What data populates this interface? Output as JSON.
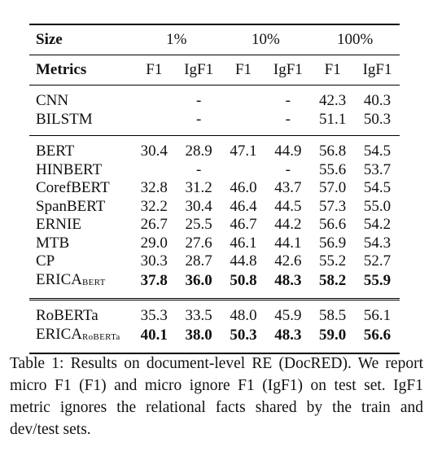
{
  "header": {
    "size_label": "Size",
    "groups": [
      "1%",
      "10%",
      "100%"
    ],
    "metrics_label": "Metrics",
    "metrics": [
      "F1",
      "IgF1",
      "F1",
      "IgF1",
      "F1",
      "IgF1"
    ]
  },
  "section1": [
    {
      "name": "CNN",
      "values": [
        "",
        "-",
        "",
        "-",
        "42.3",
        "40.3"
      ]
    },
    {
      "name": "BILSTM",
      "values": [
        "",
        "-",
        "",
        "-",
        "51.1",
        "50.3"
      ]
    }
  ],
  "section2": [
    {
      "name": "BERT",
      "values": [
        "30.4",
        "28.9",
        "47.1",
        "44.9",
        "56.8",
        "54.5"
      ]
    },
    {
      "name": "HINBERT",
      "values": [
        "",
        "-",
        "",
        "-",
        "55.6",
        "53.7"
      ]
    },
    {
      "name": "CorefBERT",
      "values": [
        "32.8",
        "31.2",
        "46.0",
        "43.7",
        "57.0",
        "54.5"
      ]
    },
    {
      "name": "SpanBERT",
      "values": [
        "32.2",
        "30.4",
        "46.4",
        "44.5",
        "57.3",
        "55.0"
      ]
    },
    {
      "name": "ERNIE",
      "values": [
        "26.7",
        "25.5",
        "46.7",
        "44.2",
        "56.6",
        "54.2"
      ]
    },
    {
      "name": "MTB",
      "values": [
        "29.0",
        "27.6",
        "46.1",
        "44.1",
        "56.9",
        "54.3"
      ]
    },
    {
      "name": "CP",
      "values": [
        "30.3",
        "28.7",
        "44.8",
        "42.6",
        "55.2",
        "52.7"
      ]
    },
    {
      "name": "ERICA",
      "sub": "BERT",
      "values": [
        "37.8",
        "36.0",
        "50.8",
        "48.3",
        "58.2",
        "55.9"
      ]
    }
  ],
  "section3": [
    {
      "name": "RoBERTa",
      "values": [
        "35.3",
        "33.5",
        "48.0",
        "45.9",
        "58.5",
        "56.1"
      ]
    },
    {
      "name": "ERICA",
      "sub": "RoBERTa",
      "values": [
        "40.1",
        "38.0",
        "50.3",
        "48.3",
        "59.0",
        "56.6"
      ]
    }
  ],
  "caption": "Table 1: Results on document-level RE (DocRED). We report micro F1 (F1) and micro ignore F1 (IgF1) on test set. IgF1 metric ignores the relational facts shared by the train and dev/test sets."
}
